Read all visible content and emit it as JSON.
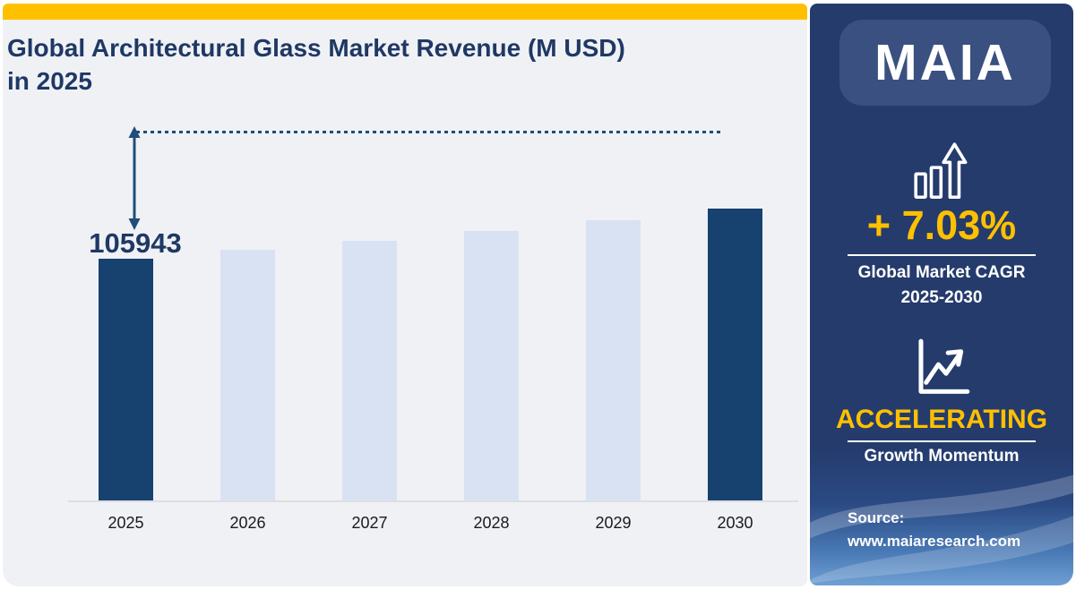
{
  "page": {
    "title_line1": "Global Architectural Glass Market Revenue  (M USD)",
    "title_line2": "in 2025"
  },
  "chart_data": {
    "type": "bar",
    "title": "Global Architectural Glass Market Revenue (M USD) in 2025",
    "categories": [
      "2025",
      "2026",
      "2027",
      "2028",
      "2029",
      "2030"
    ],
    "values": [
      105943,
      113391,
      121363,
      129895,
      139026,
      148800
    ],
    "value_label": "105943",
    "value_label_note": "only the 2025 bar is labeled; 2026-2030 estimated from bar heights at 7.03% CAGR",
    "xlabel": "",
    "ylabel": "",
    "grid": "off",
    "legend": "none",
    "highlighted_categories": [
      "2025",
      "2030"
    ],
    "colors": {
      "highlight_bar": "#17416F",
      "regular_bar": "#D9E2F3",
      "annotation": "#1F4E79"
    }
  },
  "sidebar": {
    "logo": "MAIA",
    "cagr_value": "+ 7.03%",
    "cagr_label_line1": "Global Market CAGR",
    "cagr_label_line2": "2025-2030",
    "momentum_value": "ACCELERATING",
    "momentum_label": "Growth Momentum",
    "source_label": "Source:",
    "source_url": "www.maiaresearch.com",
    "colors": {
      "accent": "#FFC000",
      "panel": "#243B6C",
      "logo_box": "#3A5080"
    }
  }
}
